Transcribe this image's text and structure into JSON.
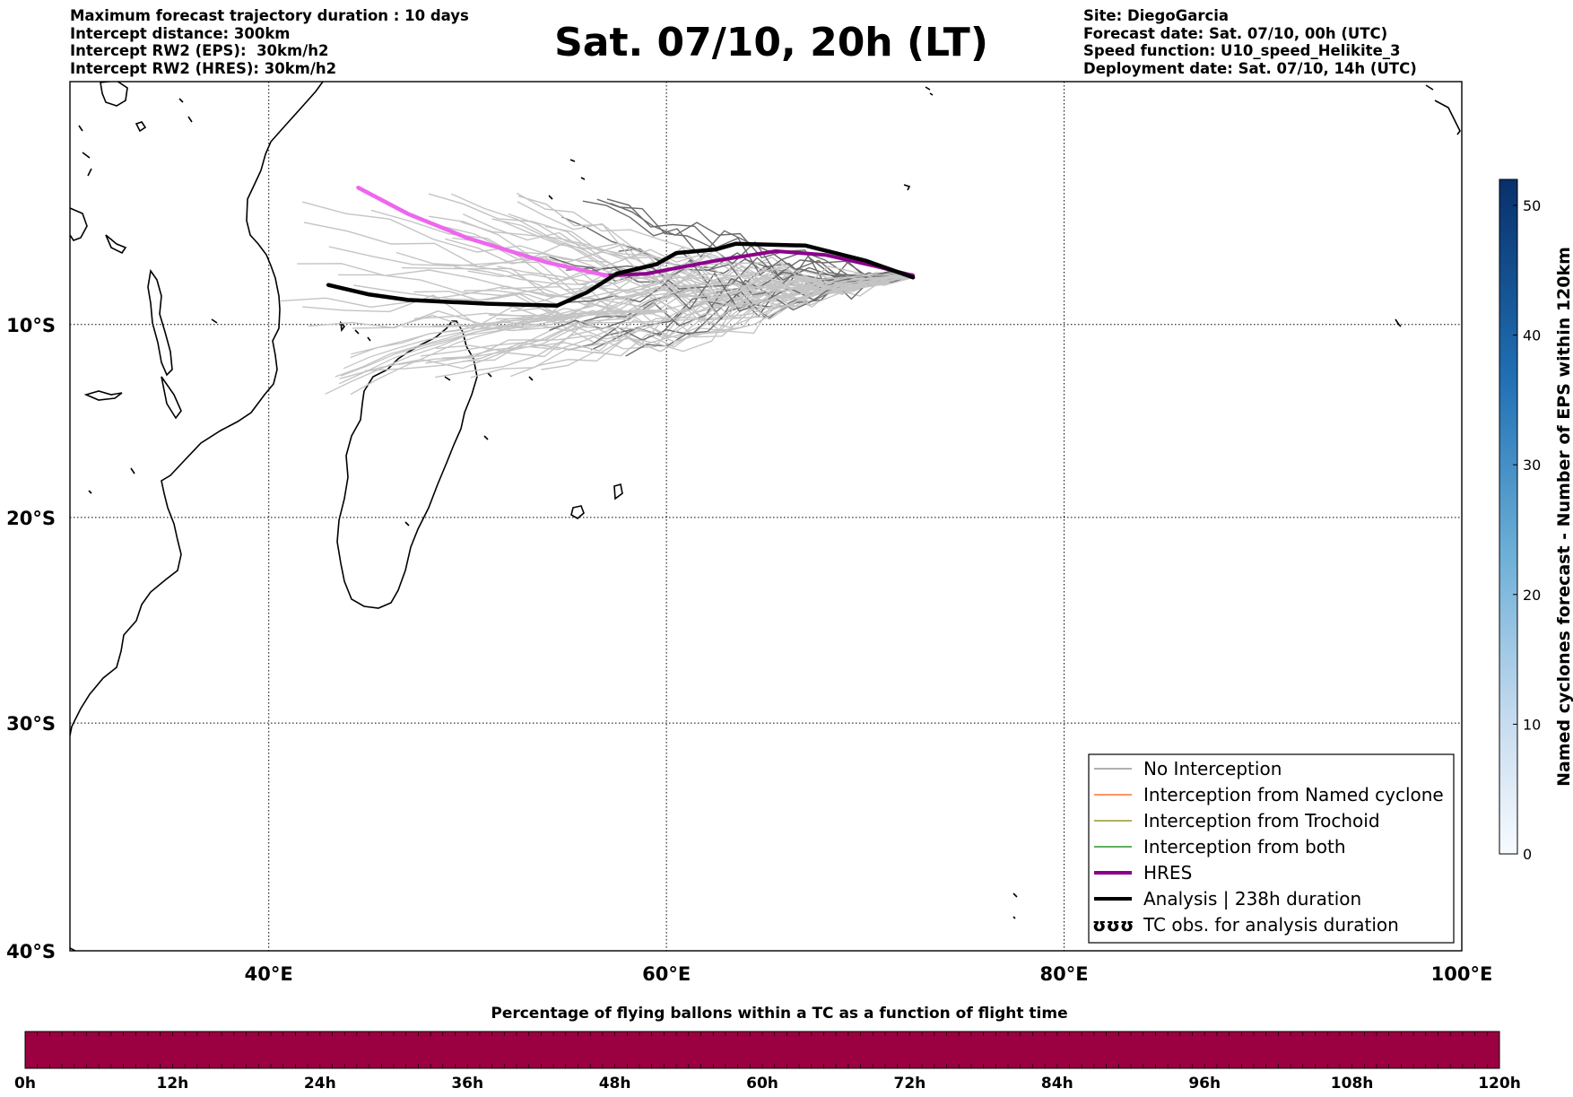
{
  "header_left": [
    "Maximum forecast trajectory duration : 10 days",
    "Intercept distance: 300km",
    "Intercept RW2 (EPS):  30km/h2",
    "Intercept RW2 (HRES): 30km/h2"
  ],
  "header_right": [
    "Site: DiegoGarcia",
    "Forecast date: Sat. 07/10, 00h (UTC)",
    "Speed function: U10_speed_Helikite_3",
    "Deployment date: Sat. 07/10, 14h (UTC)"
  ],
  "title": "Sat. 07/10, 20h (LT)",
  "map": {
    "lat_labels": [
      "10°S",
      "20°S",
      "30°S",
      "40°S"
    ],
    "lon_labels": [
      "40°E",
      "60°E",
      "80°E",
      "100°E"
    ],
    "lon_range": [
      30,
      100
    ],
    "lat_range": [
      -40,
      3
    ],
    "gridlines": true
  },
  "legend": {
    "placement": "lower-right",
    "items": [
      {
        "label": "No Interception",
        "color": "#808080"
      },
      {
        "label": "Interception from Named cyclone",
        "color": "#ff5500"
      },
      {
        "label": "Interception from Trochoid",
        "color": "#808000"
      },
      {
        "label": "Interception from both",
        "color": "#008000"
      },
      {
        "label": "HRES",
        "color": "#8b008b"
      },
      {
        "label": "Analysis | 238h duration",
        "color": "#000000"
      },
      {
        "label": "TC obs. for analysis duration",
        "color": "#000000",
        "symbol": "ʊʊʊ"
      }
    ]
  },
  "colorbar_right": {
    "label": "Named cyclones forecast - Number of EPS within 120km",
    "ticks": [
      "0",
      "10",
      "20",
      "30",
      "40",
      "50"
    ],
    "range": [
      0,
      52
    ],
    "colormap": "Blues"
  },
  "bottom_bar": {
    "title": "Percentage of flying ballons within a TC as a function of flight time",
    "ticks": [
      "0h",
      "12h",
      "24h",
      "36h",
      "48h",
      "60h",
      "72h",
      "84h",
      "96h",
      "108h",
      "120h"
    ],
    "color": "#9b0040"
  },
  "chart_data": {
    "type": "line",
    "x_unit": "longitude (°E)",
    "y_unit": "latitude (°N, negative = south)",
    "series": [
      {
        "name": "HRES",
        "color": "#8b008b",
        "points": [
          [
            72.4,
            -7.4
          ],
          [
            70.5,
            -6.9
          ],
          [
            68,
            -6.3
          ],
          [
            65.5,
            -6.1
          ],
          [
            62.5,
            -6.6
          ],
          [
            59,
            -7.3
          ],
          [
            57,
            -7.4
          ]
        ]
      },
      {
        "color": "#ee66ee",
        "points": [
          [
            57,
            -7.4
          ],
          [
            54,
            -6.7
          ],
          [
            50,
            -5.4
          ],
          [
            47,
            -4.1
          ],
          [
            44.5,
            -2.7
          ]
        ]
      },
      {
        "name": "Analysis | 238h duration",
        "color": "#000000",
        "points": [
          [
            72.4,
            -7.5
          ],
          [
            70,
            -6.6
          ],
          [
            67,
            -5.8
          ],
          [
            63.5,
            -5.7
          ],
          [
            62.5,
            -6.0
          ],
          [
            60.5,
            -6.2
          ],
          [
            59.5,
            -6.8
          ],
          [
            57.5,
            -7.3
          ],
          [
            56,
            -8.3
          ],
          [
            54.5,
            -9.0
          ],
          [
            51,
            -8.9
          ],
          [
            47,
            -8.7
          ],
          [
            45,
            -8.4
          ],
          [
            43,
            -7.9
          ]
        ]
      }
    ]
  }
}
